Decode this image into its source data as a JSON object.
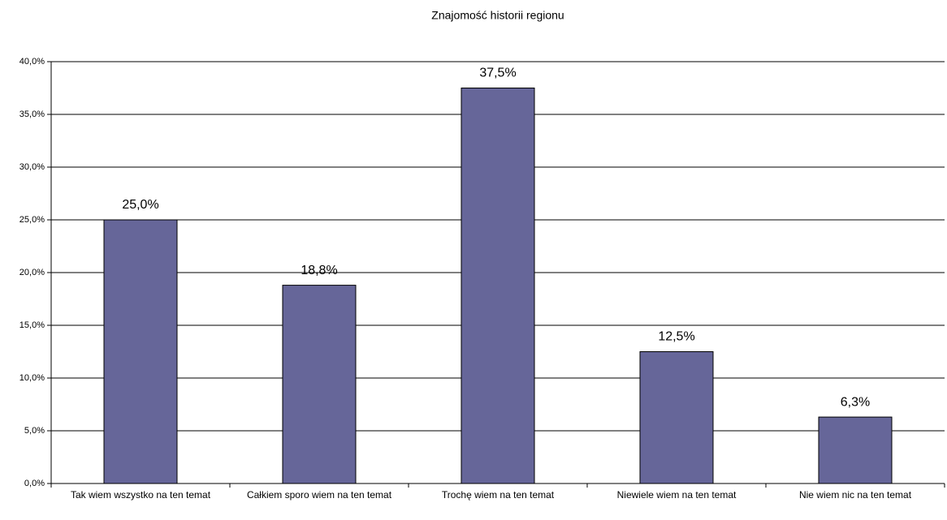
{
  "chart_data": {
    "type": "bar",
    "title": "Znajomość historii regionu",
    "categories": [
      "Tak wiem wszystko na ten temat",
      "Całkiem sporo wiem na ten temat",
      "Trochę wiem na ten temat",
      "Niewiele wiem na ten temat",
      "Nie wiem nic na ten temat"
    ],
    "values": [
      25.0,
      18.8,
      37.5,
      12.5,
      6.3
    ],
    "value_labels": [
      "25,0%",
      "18,8%",
      "37,5%",
      "12,5%",
      "6,3%"
    ],
    "color": "#666699",
    "ylim": [
      0,
      40
    ],
    "yticks": [
      {
        "value": 0,
        "label": "0,0%"
      },
      {
        "value": 5,
        "label": "5,0%"
      },
      {
        "value": 10,
        "label": "10,0%"
      },
      {
        "value": 15,
        "label": "15,0%"
      },
      {
        "value": 20,
        "label": "20,0%"
      },
      {
        "value": 25,
        "label": "25,0%"
      },
      {
        "value": 30,
        "label": "30,0%"
      },
      {
        "value": 35,
        "label": "35,0%"
      },
      {
        "value": 40,
        "label": "40,0%"
      }
    ],
    "grid": true
  }
}
